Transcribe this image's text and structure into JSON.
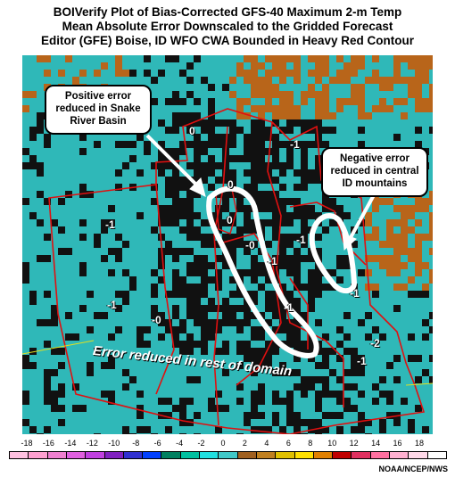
{
  "title": {
    "line1": "BOIVerify Plot of Bias-Corrected GFS-40 Maximum 2-m Temp",
    "line2": "Mean Absolute Error Downscaled to the Gridded Forecast",
    "line3": "Editor (GFE) Boise, ID WFO CWA Bounded in Heavy Red Contour"
  },
  "callouts": {
    "left": "Positive error reduced in Snake River Basin",
    "right": "Negative error reduced in central ID mountains"
  },
  "domain_label": "Error reduced in rest of domain",
  "map_values": [
    {
      "id": "v1",
      "text": "0"
    },
    {
      "id": "v2",
      "text": "-1"
    },
    {
      "id": "v3",
      "text": "0"
    },
    {
      "id": "v4",
      "text": "0"
    },
    {
      "id": "v5",
      "text": "-1"
    },
    {
      "id": "v6",
      "text": "-0"
    },
    {
      "id": "v7",
      "text": "-1"
    },
    {
      "id": "v8",
      "text": "-1"
    },
    {
      "id": "v9",
      "text": "-1"
    },
    {
      "id": "v10",
      "text": "-0"
    },
    {
      "id": "v11",
      "text": "-1"
    },
    {
      "id": "v12",
      "text": "-1"
    },
    {
      "id": "v13",
      "text": "-2"
    },
    {
      "id": "v14",
      "text": "-1"
    }
  ],
  "colors": {
    "background_cyan": "#2fb8b8",
    "dark": "#111111",
    "orange": "#b8651a",
    "boundary_red": "#e01010",
    "highlight_white": "#ffffff"
  },
  "scale": {
    "ticks": [
      "-18",
      "-16",
      "-14",
      "-12",
      "-10",
      "-8",
      "-6",
      "-4",
      "-2",
      "0",
      "2",
      "4",
      "6",
      "8",
      "10",
      "12",
      "14",
      "16",
      "18"
    ],
    "colors": [
      "#ffc0e0",
      "#ffa0d0",
      "#f080d0",
      "#e060e0",
      "#c040e0",
      "#8020c0",
      "#3030d0",
      "#0040ff",
      "#008060",
      "#00c0a0",
      "#20e0e0",
      "#40c8c8",
      "#a06020",
      "#c08020",
      "#e0c000",
      "#ffe000",
      "#e08000",
      "#c00000",
      "#e03060",
      "#ff70a0",
      "#ffb0d0",
      "#ffd8e8",
      "#ffffff"
    ]
  },
  "credit": "NOAA/NCEP/NWS"
}
